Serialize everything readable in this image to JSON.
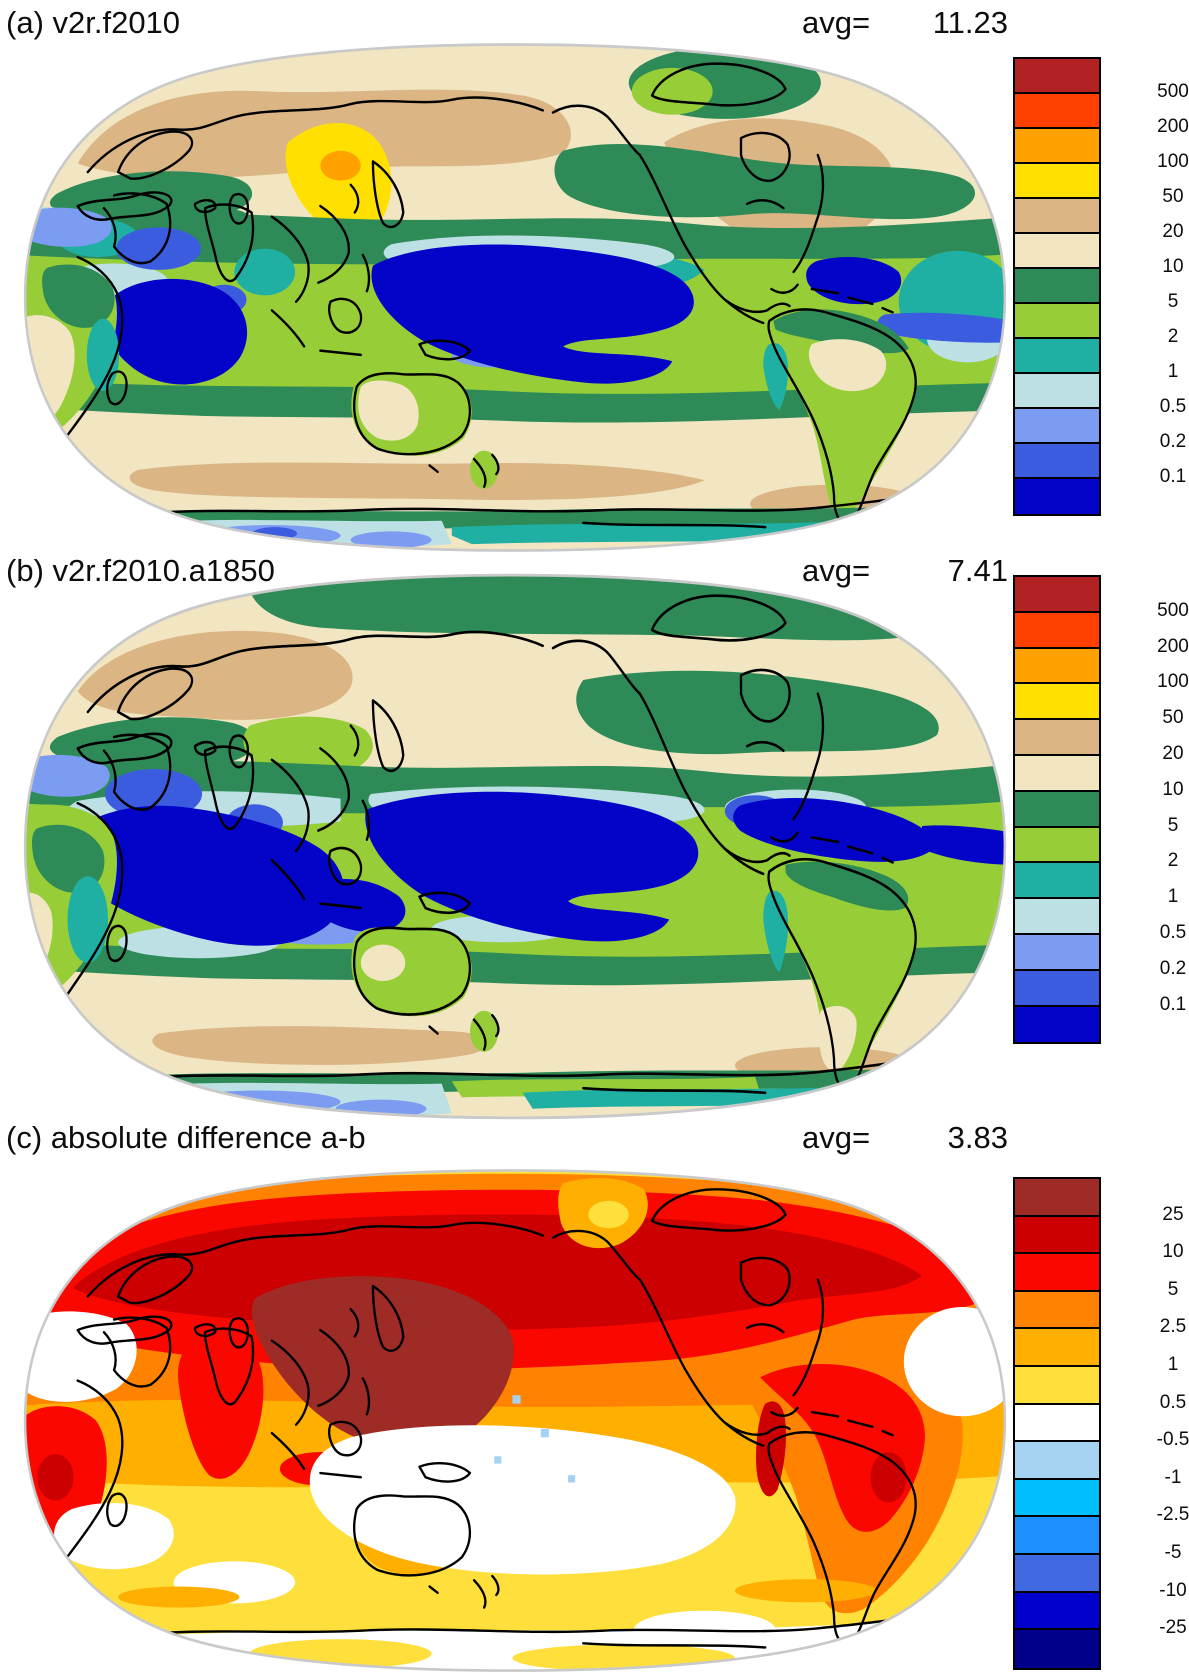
{
  "figure": {
    "description_note": "three-panel global map figure",
    "panels": [
      "a",
      "b",
      "c"
    ]
  },
  "panels": [
    {
      "id": "a",
      "title": "(a) v2r.f2010",
      "avg_label": "avg=",
      "avg_value": "11.23",
      "colorbar": {
        "labels": [
          "500",
          "200",
          "100",
          "50",
          "20",
          "10",
          "5",
          "2",
          "1",
          "0.5",
          "0.2",
          "0.1"
        ],
        "colors": [
          "#B22222",
          "#FF4000",
          "#FFA200",
          "#FFE000",
          "#DBB584",
          "#F1E5C2",
          "#2E8B57",
          "#97CE37",
          "#1FAFA3",
          "#BCE0E4",
          "#7B9CF0",
          "#3C5CE0",
          "#0404C8"
        ]
      }
    },
    {
      "id": "b",
      "title": "(b) v2r.f2010.a1850",
      "avg_label": "avg=",
      "avg_value": "7.41",
      "colorbar": {
        "labels": [
          "500",
          "200",
          "100",
          "50",
          "20",
          "10",
          "5",
          "2",
          "1",
          "0.5",
          "0.2",
          "0.1"
        ],
        "colors": [
          "#B22222",
          "#FF4000",
          "#FFA200",
          "#FFE000",
          "#DBB584",
          "#F1E5C2",
          "#2E8B57",
          "#97CE37",
          "#1FAFA3",
          "#BCE0E4",
          "#7B9CF0",
          "#3C5CE0",
          "#0404C8"
        ]
      }
    },
    {
      "id": "c",
      "title": "(c) absolute difference a-b",
      "avg_label": "avg=",
      "avg_value": "3.83",
      "colorbar": {
        "labels": [
          "25",
          "10",
          "5",
          "2.5",
          "1",
          "0.5",
          "-0.5",
          "-1",
          "-2.5",
          "-5",
          "-10",
          "-25"
        ],
        "colors": [
          "#9E2B26",
          "#CC0000",
          "#FA0800",
          "#FF8200",
          "#FFAF00",
          "#FFDF3C",
          "#FFFFFF",
          "#A6D2F2",
          "#00BFFF",
          "#1E90FF",
          "#4169E1",
          "#0000CD",
          "#00008B"
        ]
      }
    }
  ],
  "map_palette_ab": {
    "darkred": "#B22222",
    "redorange": "#FF4000",
    "orange": "#FFA200",
    "yellow": "#FFE000",
    "tan": "#DBB584",
    "beige": "#F1E5C2",
    "seagreen": "#2E8B57",
    "lightgreen": "#97CE37",
    "teal": "#1FAFA3",
    "palecyan": "#BCE0E4",
    "cornflower": "#7B9CF0",
    "royal": "#3C5CE0",
    "darkblue": "#0404C8"
  },
  "map_palette_c": {
    "brown": "#9E2B26",
    "darkred": "#CC0000",
    "red": "#FA0800",
    "orange": "#FF8200",
    "amber": "#FFAF00",
    "yellow": "#FFDF3C",
    "white": "#FFFFFF",
    "lightblue": "#A6D2F2",
    "sky": "#00BFFF",
    "dodger": "#1E90FF",
    "royal": "#4169E1",
    "mediumblue": "#0000CD",
    "navy": "#00008B"
  }
}
